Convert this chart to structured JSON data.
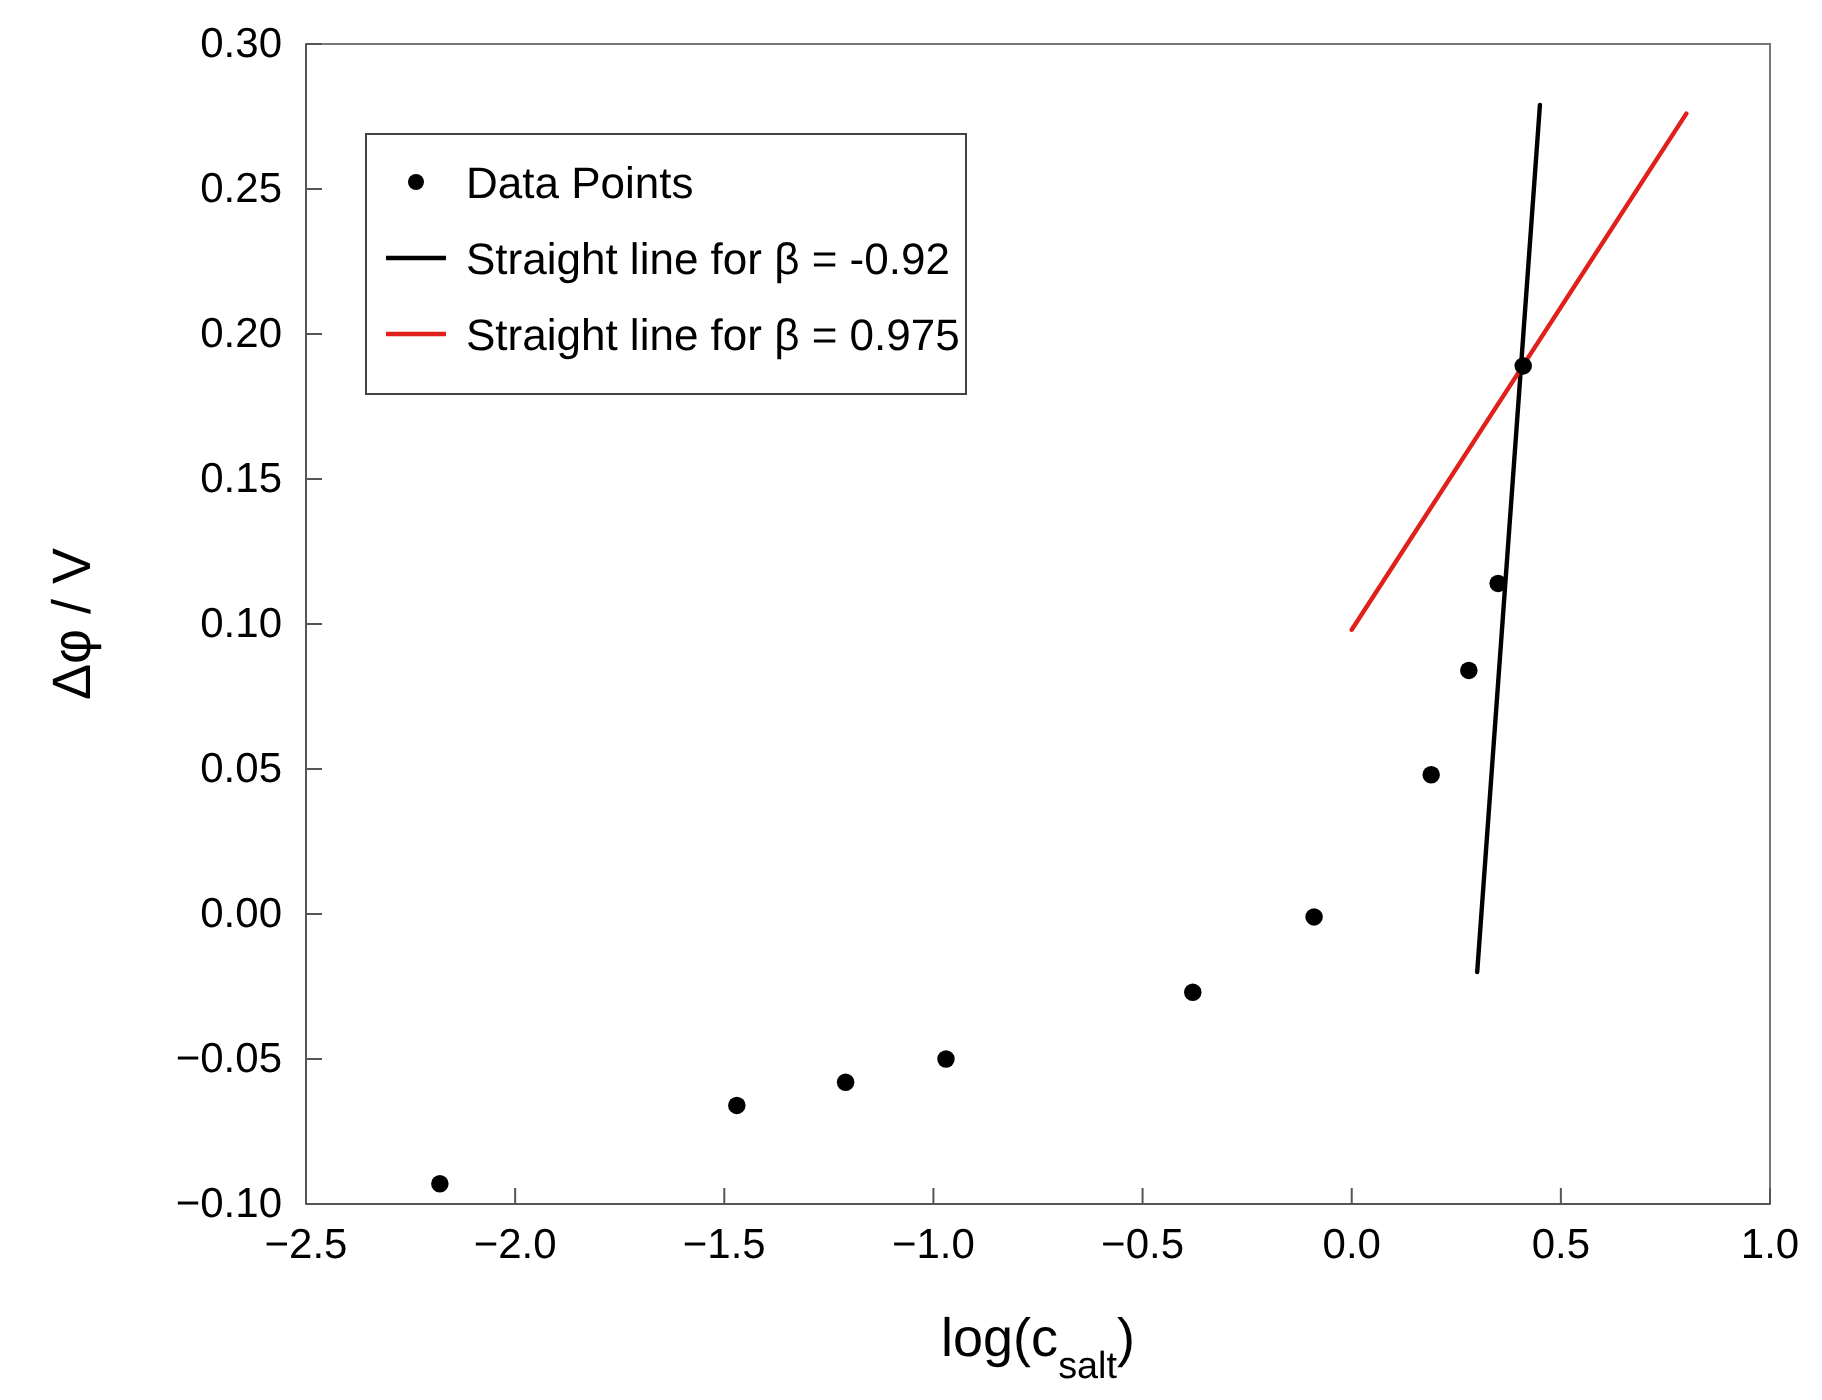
{
  "chart_data": {
    "type": "scatter",
    "xlabel": "log(c$_{salt}$)",
    "ylabel": "Δφ / V",
    "xlim": [
      -2.5,
      1.0
    ],
    "ylim": [
      -0.1,
      0.3
    ],
    "xticks": [
      {
        "value": -2.5,
        "label": "−2.5"
      },
      {
        "value": -2.0,
        "label": "−2.0"
      },
      {
        "value": -1.5,
        "label": "−1.5"
      },
      {
        "value": -1.0,
        "label": "−1.0"
      },
      {
        "value": -0.5,
        "label": "−0.5"
      },
      {
        "value": 0,
        "label": "0.0"
      },
      {
        "value": 0.5,
        "label": "0.5"
      },
      {
        "value": 1.0,
        "label": "1.0"
      }
    ],
    "yticks": [
      {
        "value": -0.1,
        "label": "−0.10"
      },
      {
        "value": -0.05,
        "label": "−0.05"
      },
      {
        "value": 0,
        "label": "0.00"
      },
      {
        "value": 0.05,
        "label": "0.05"
      },
      {
        "value": 0.1,
        "label": "0.10"
      },
      {
        "value": 0.15,
        "label": "0.15"
      },
      {
        "value": 0.2,
        "label": "0.20"
      },
      {
        "value": 0.25,
        "label": "0.25"
      },
      {
        "value": 0.3,
        "label": "0.30"
      }
    ],
    "grid": false,
    "legend": "top left",
    "series": [
      {
        "name": "Data Points",
        "marker": "circle",
        "color": "#000000",
        "x": [
          -2.18,
          -1.47,
          -1.21,
          -0.97,
          -0.38,
          -0.09,
          0.19,
          0.28,
          0.35,
          0.41
        ],
        "values": [
          -0.093,
          -0.066,
          -0.058,
          -0.05,
          -0.027,
          -0.001,
          0.048,
          0.084,
          0.114,
          0.189
        ]
      },
      {
        "name": "Straight line for β = -0.92",
        "type": "line",
        "color": "#000000",
        "x": [
          0.3,
          0.45
        ],
        "values": [
          -0.02,
          0.279
        ]
      },
      {
        "name": "Straight line for β = 0.975",
        "type": "line",
        "color": "#e0201b",
        "x": [
          0.0,
          0.8
        ],
        "values": [
          0.098,
          0.276
        ]
      }
    ]
  }
}
